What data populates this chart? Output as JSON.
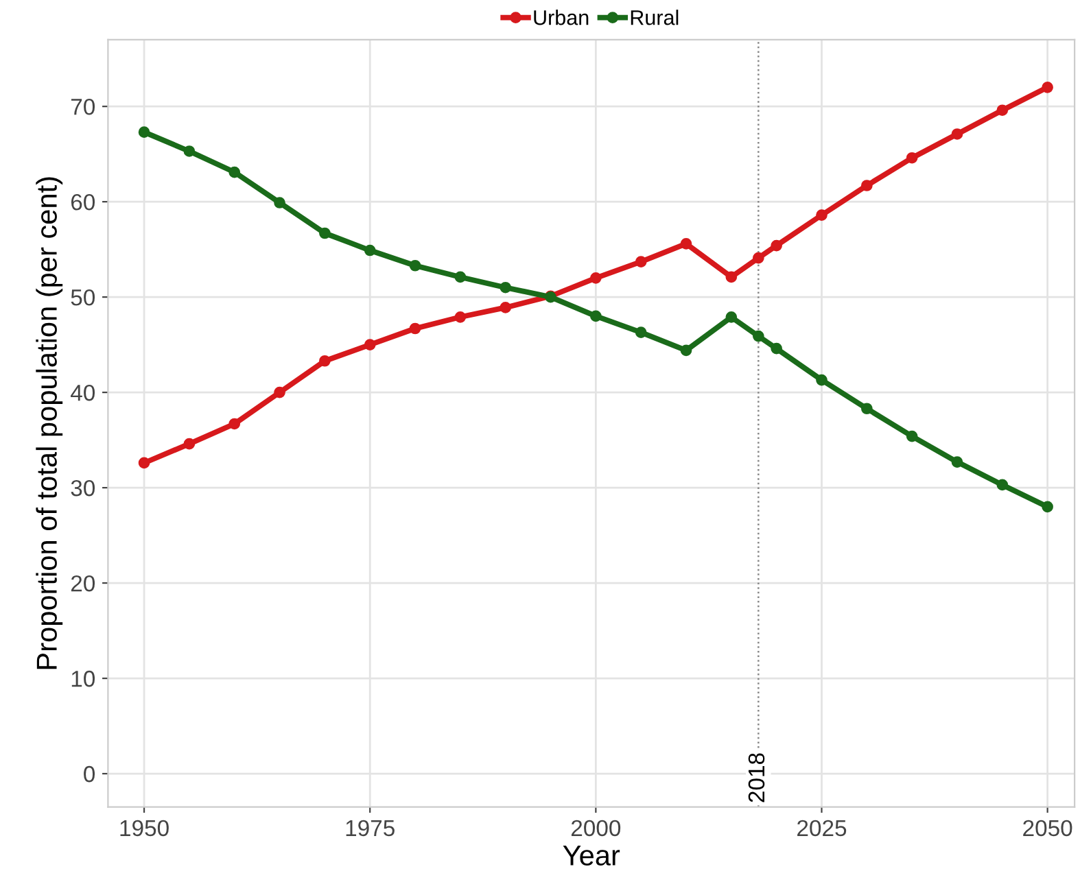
{
  "chart_data": {
    "type": "line",
    "xlabel": "Year",
    "ylabel": "Proportion of total population (per cent)",
    "x": [
      1950,
      1955,
      1960,
      1965,
      1970,
      1975,
      1980,
      1985,
      1990,
      1995,
      2000,
      2005,
      2010,
      2015,
      2018,
      2020,
      2025,
      2030,
      2035,
      2040,
      2045,
      2050
    ],
    "series": [
      {
        "name": "Urban",
        "color": "#d7191c",
        "values": [
          32.6,
          34.6,
          36.7,
          40.0,
          43.3,
          45.0,
          46.7,
          47.9,
          48.9,
          50.1,
          52.0,
          53.7,
          55.6,
          52.1,
          54.1,
          55.4,
          58.6,
          61.7,
          64.6,
          67.1,
          69.6,
          72.0
        ]
      },
      {
        "name": "Rural",
        "color": "#1a6b1a",
        "values": [
          67.3,
          65.3,
          63.1,
          59.9,
          56.7,
          54.9,
          53.3,
          52.1,
          51.0,
          50.0,
          48.0,
          46.3,
          44.4,
          47.9,
          45.9,
          44.6,
          41.3,
          38.3,
          35.4,
          32.7,
          30.3,
          28.0
        ]
      }
    ],
    "xlim": [
      1946,
      2053
    ],
    "xticks": [
      1950,
      1975,
      2000,
      2025,
      2050
    ],
    "ylim": [
      -3.5,
      77
    ],
    "yticks": [
      0,
      10,
      20,
      30,
      40,
      50,
      60,
      70
    ],
    "ref_lines": [
      {
        "axis": "x",
        "value": 2018,
        "label": "2018",
        "color": "#888888",
        "line_style": "dotted"
      }
    ],
    "grid": true,
    "legend": "top",
    "marker": "circle",
    "line_style": "solid"
  }
}
